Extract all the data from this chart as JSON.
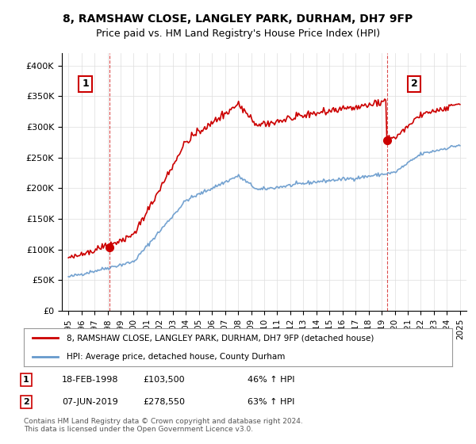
{
  "title": "8, RAMSHAW CLOSE, LANGLEY PARK, DURHAM, DH7 9FP",
  "subtitle": "Price paid vs. HM Land Registry's House Price Index (HPI)",
  "legend_line1": "8, RAMSHAW CLOSE, LANGLEY PARK, DURHAM, DH7 9FP (detached house)",
  "legend_line2": "HPI: Average price, detached house, County Durham",
  "annotation1_label": "1",
  "annotation1_date": "18-FEB-1998",
  "annotation1_price": "£103,500",
  "annotation1_hpi": "46% ↑ HPI",
  "annotation2_label": "2",
  "annotation2_date": "07-JUN-2019",
  "annotation2_price": "£278,550",
  "annotation2_hpi": "63% ↑ HPI",
  "footer": "Contains HM Land Registry data © Crown copyright and database right 2024.\nThis data is licensed under the Open Government Licence v3.0.",
  "house_color": "#cc0000",
  "hpi_color": "#6699cc",
  "marker_color": "#cc0000",
  "annotation_box_color": "#cc0000",
  "sale1_x": 1998.12,
  "sale1_y": 103500,
  "sale2_x": 2019.43,
  "sale2_y": 278550,
  "xlim": [
    1994.5,
    2025.5
  ],
  "ylim": [
    0,
    420000
  ],
  "yticks": [
    0,
    50000,
    100000,
    150000,
    200000,
    250000,
    300000,
    350000,
    400000
  ],
  "ytick_labels": [
    "£0",
    "£50K",
    "£100K",
    "£150K",
    "£200K",
    "£250K",
    "£300K",
    "£350K",
    "£400K"
  ],
  "xticks": [
    1995,
    1996,
    1997,
    1998,
    1999,
    2000,
    2001,
    2002,
    2003,
    2004,
    2005,
    2006,
    2007,
    2008,
    2009,
    2010,
    2011,
    2012,
    2013,
    2014,
    2015,
    2016,
    2017,
    2018,
    2019,
    2020,
    2021,
    2022,
    2023,
    2024,
    2025
  ]
}
